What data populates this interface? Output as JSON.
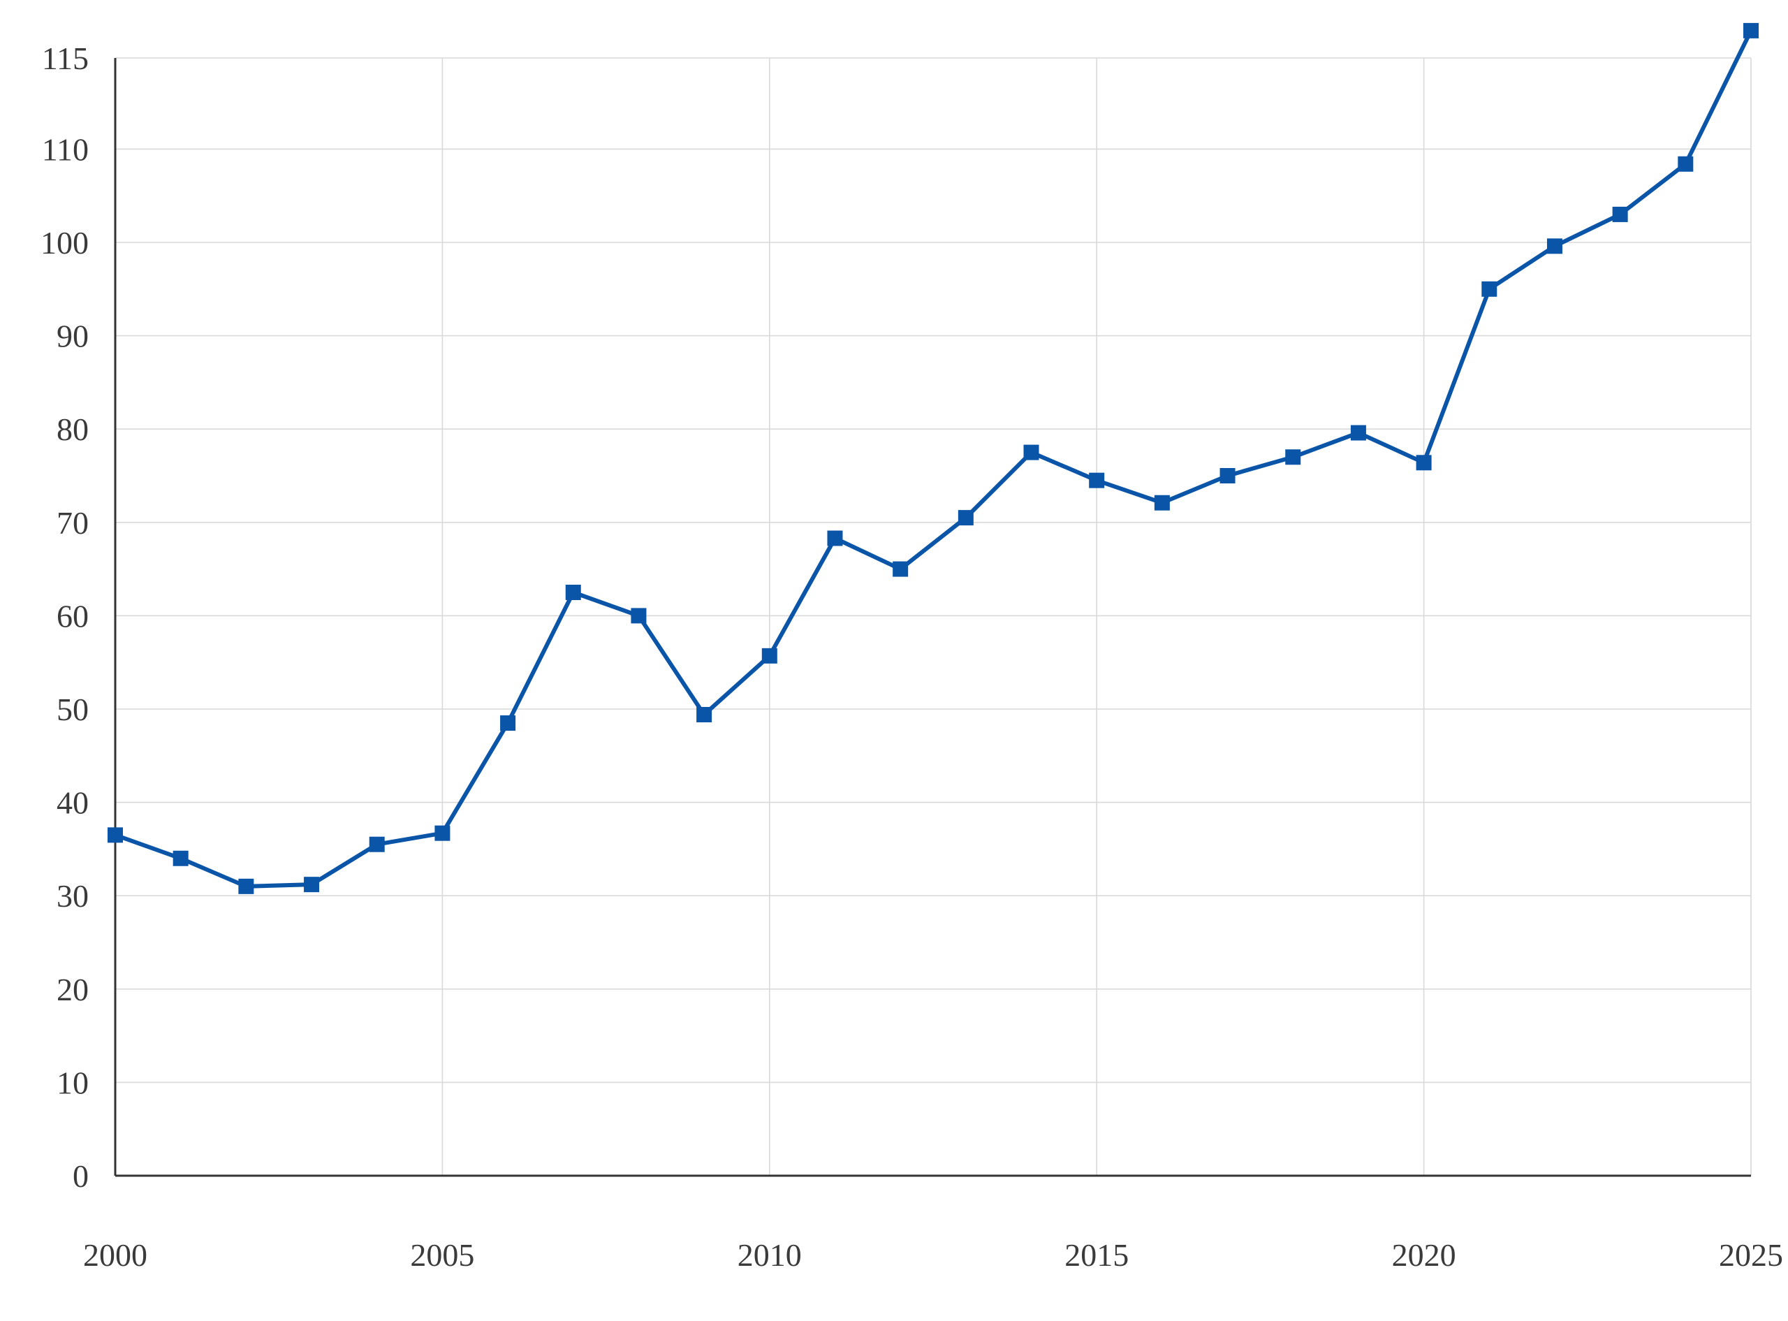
{
  "chart_data": {
    "type": "line",
    "title": "",
    "xlabel": "",
    "ylabel": "",
    "x": [
      2000,
      2001,
      2002,
      2003,
      2004,
      2005,
      2006,
      2007,
      2008,
      2009,
      2010,
      2011,
      2012,
      2013,
      2014,
      2015,
      2016,
      2017,
      2018,
      2019,
      2020,
      2021,
      2022,
      2023,
      2024,
      2025
    ],
    "series": [
      {
        "color": "#0a55a8",
        "marker": "square",
        "values": [
          36.5,
          34.0,
          31.0,
          31.2,
          35.5,
          36.7,
          48.5,
          62.5,
          60.0,
          49.4,
          55.7,
          68.3,
          65.0,
          70.5,
          77.5,
          74.5,
          72.1,
          75.0,
          77.0,
          79.6,
          76.4,
          95.0,
          99.6,
          103.0,
          108.4,
          116.5
        ]
      }
    ],
    "xlim": [
      2000,
      2025
    ],
    "ylim": [
      0,
      120
    ],
    "x_ticks": [
      "2000",
      "2005",
      "2010",
      "2015",
      "2020",
      "2025"
    ],
    "y_ticks": [
      "0",
      "10",
      "20",
      "30",
      "40",
      "50",
      "60",
      "70",
      "80",
      "90",
      "100",
      "110",
      "115"
    ],
    "grid": true,
    "legend": "none"
  }
}
